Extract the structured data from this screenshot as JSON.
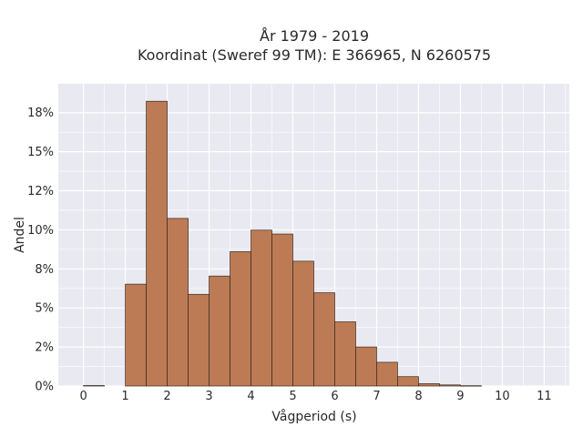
{
  "chart_data": {
    "type": "bar",
    "title": "År 1979 - 2019",
    "subtitle": "Koordinat (Sweref 99 TM): E 366965, N 6260575",
    "xlabel": "Vågperiod (s)",
    "ylabel": "Andel",
    "x_ticks": [
      "0",
      "1",
      "2",
      "3",
      "4",
      "5",
      "6",
      "7",
      "8",
      "9",
      "10",
      "11"
    ],
    "y_ticks": [
      {
        "value": 0,
        "label": "0%"
      },
      {
        "value": 0.025,
        "label": "2%"
      },
      {
        "value": 0.05,
        "label": "5%"
      },
      {
        "value": 0.075,
        "label": "8%"
      },
      {
        "value": 0.1,
        "label": "10%"
      },
      {
        "value": 0.125,
        "label": "12%"
      },
      {
        "value": 0.15,
        "label": "15%"
      },
      {
        "value": 0.175,
        "label": "18%"
      }
    ],
    "xlim": [
      -0.6,
      11.6
    ],
    "ylim": [
      0,
      0.1935
    ],
    "bin_width": 0.5,
    "bins": [
      {
        "start": 0.0,
        "value": 0.0003
      },
      {
        "start": 1.0,
        "value": 0.0652
      },
      {
        "start": 1.5,
        "value": 0.1823
      },
      {
        "start": 2.0,
        "value": 0.1073
      },
      {
        "start": 2.5,
        "value": 0.0587
      },
      {
        "start": 3.0,
        "value": 0.0704
      },
      {
        "start": 3.5,
        "value": 0.086
      },
      {
        "start": 4.0,
        "value": 0.0998
      },
      {
        "start": 4.5,
        "value": 0.0973
      },
      {
        "start": 5.0,
        "value": 0.0799
      },
      {
        "start": 5.5,
        "value": 0.0597
      },
      {
        "start": 6.0,
        "value": 0.0411
      },
      {
        "start": 6.5,
        "value": 0.025
      },
      {
        "start": 7.0,
        "value": 0.0152
      },
      {
        "start": 7.5,
        "value": 0.006
      },
      {
        "start": 8.0,
        "value": 0.0015
      },
      {
        "start": 8.5,
        "value": 0.0007
      },
      {
        "start": 9.0,
        "value": 0.0002
      }
    ],
    "colors": {
      "bar": "#bc7b55",
      "bar_edge": "#3a2a20",
      "plot_background": "#e9e9f1",
      "grid": "#ffffff"
    },
    "grid": true,
    "legend": "none"
  }
}
